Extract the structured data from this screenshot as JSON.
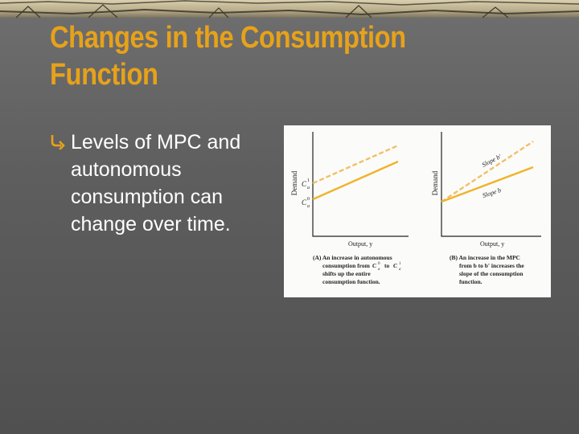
{
  "slide": {
    "title_line1": "Changes in the Consumption",
    "title_line2": "Function",
    "bullet": {
      "icon": "curved-arrow-bullet-icon",
      "text_lines": [
        "Levels of MPC and",
        "autonomous",
        "consumption can",
        "change over time."
      ]
    }
  },
  "figure": {
    "panel_a": {
      "y_axis_label": "Demand",
      "x_axis_label": "Output, y",
      "intercept_top": "C",
      "intercept_top_sup": "1",
      "intercept_top_sub": "a",
      "intercept_bottom": "C",
      "intercept_bottom_sup": "0",
      "intercept_bottom_sub": "a",
      "caption_lines": [
        "(A) An increase in autonomous",
        "consumption from",
        "to",
        "shifts up the entire",
        "consumption function."
      ]
    },
    "panel_b": {
      "y_axis_label": "Demand",
      "x_axis_label": "Output, y",
      "line_label_upper": "Slope b'",
      "line_label_lower": "Slope b",
      "caption_lines": [
        "(B) An increase in the MPC",
        "from b to b' increases the",
        "slope of the consumption",
        "function."
      ]
    }
  },
  "colors": {
    "title": "#e7a21a",
    "line_solid": "#f0b42a",
    "line_dashed": "#f2c064"
  }
}
